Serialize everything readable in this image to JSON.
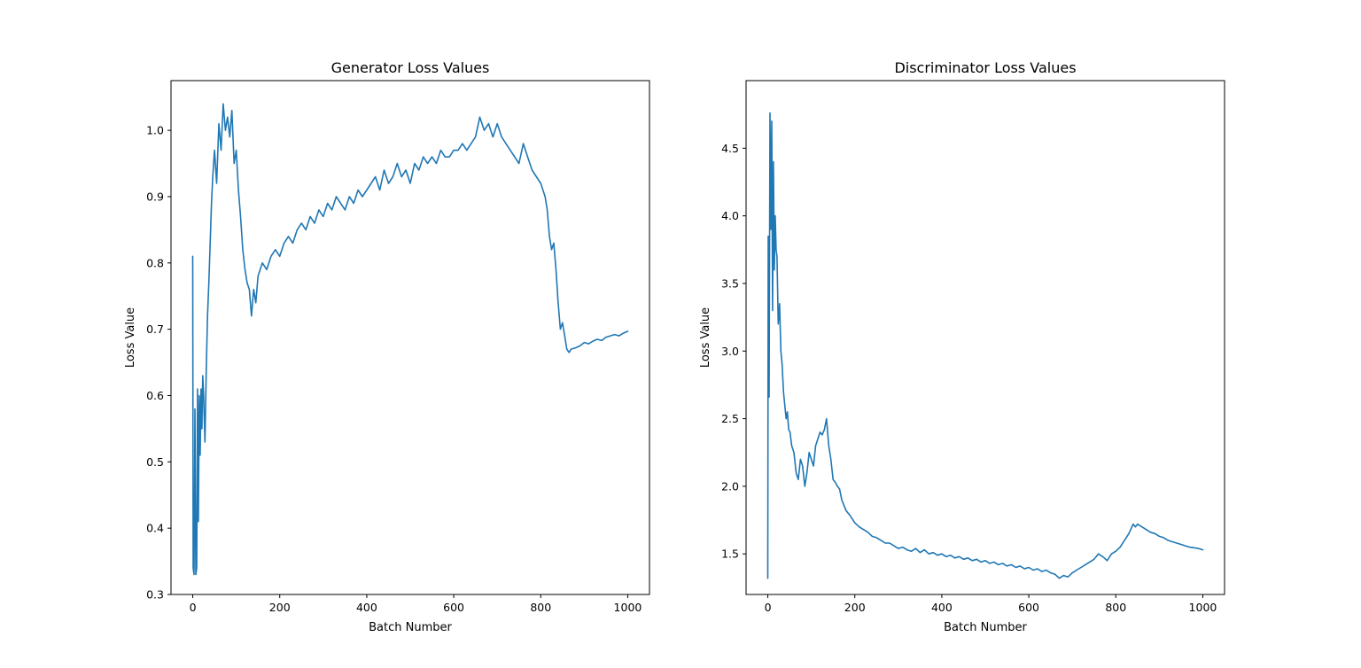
{
  "colors": {
    "series": "#1f77b4",
    "axes": "#000000",
    "background": "#ffffff"
  },
  "chart_data": [
    {
      "type": "line",
      "title": "Generator Loss Values",
      "xlabel": "Batch Number",
      "ylabel": "Loss Value",
      "xlim": [
        -50,
        1050
      ],
      "ylim": [
        0.3,
        1.075
      ],
      "xticks": [
        0,
        200,
        400,
        600,
        800,
        1000
      ],
      "yticks": [
        0.3,
        0.4,
        0.5,
        0.6,
        0.7,
        0.8,
        0.9,
        1.0
      ],
      "xtick_labels": [
        "0",
        "200",
        "400",
        "600",
        "800",
        "1000"
      ],
      "ytick_labels": [
        "0.3",
        "0.4",
        "0.5",
        "0.6",
        "0.7",
        "0.8",
        "0.9",
        "1.0"
      ],
      "grid": false,
      "series": [
        {
          "x": [
            0,
            1,
            3,
            5,
            7,
            9,
            11,
            13,
            15,
            17,
            19,
            21,
            23,
            25,
            28,
            31,
            34,
            37,
            40,
            43,
            46,
            50,
            55,
            60,
            65,
            70,
            75,
            80,
            85,
            90,
            95,
            100,
            105,
            110,
            115,
            120,
            125,
            130,
            135,
            140,
            145,
            150,
            160,
            170,
            180,
            190,
            200,
            210,
            220,
            230,
            240,
            250,
            260,
            270,
            280,
            290,
            300,
            310,
            320,
            330,
            340,
            350,
            360,
            370,
            380,
            390,
            400,
            410,
            420,
            430,
            440,
            450,
            460,
            470,
            480,
            490,
            500,
            510,
            520,
            530,
            540,
            550,
            560,
            570,
            580,
            590,
            600,
            610,
            620,
            630,
            640,
            650,
            660,
            670,
            680,
            690,
            700,
            710,
            720,
            730,
            740,
            750,
            760,
            770,
            780,
            790,
            800,
            810,
            815,
            820,
            825,
            830,
            835,
            840,
            845,
            850,
            855,
            860,
            865,
            870,
            880,
            890,
            900,
            910,
            920,
            930,
            940,
            950,
            960,
            970,
            980,
            990,
            1000
          ],
          "y": [
            0.81,
            0.34,
            0.33,
            0.58,
            0.33,
            0.34,
            0.61,
            0.41,
            0.6,
            0.51,
            0.61,
            0.55,
            0.63,
            0.6,
            0.53,
            0.64,
            0.72,
            0.77,
            0.83,
            0.89,
            0.93,
            0.97,
            0.92,
            1.01,
            0.97,
            1.04,
            1.0,
            1.02,
            0.99,
            1.03,
            0.95,
            0.97,
            0.91,
            0.87,
            0.82,
            0.79,
            0.77,
            0.76,
            0.72,
            0.76,
            0.74,
            0.78,
            0.8,
            0.79,
            0.81,
            0.82,
            0.81,
            0.83,
            0.84,
            0.83,
            0.85,
            0.86,
            0.85,
            0.87,
            0.86,
            0.88,
            0.87,
            0.89,
            0.88,
            0.9,
            0.89,
            0.88,
            0.9,
            0.89,
            0.91,
            0.9,
            0.91,
            0.92,
            0.93,
            0.91,
            0.94,
            0.92,
            0.93,
            0.95,
            0.93,
            0.94,
            0.92,
            0.95,
            0.94,
            0.96,
            0.95,
            0.96,
            0.95,
            0.97,
            0.96,
            0.96,
            0.97,
            0.97,
            0.98,
            0.97,
            0.98,
            0.99,
            1.02,
            1.0,
            1.01,
            0.99,
            1.01,
            0.99,
            0.98,
            0.97,
            0.96,
            0.95,
            0.98,
            0.96,
            0.94,
            0.93,
            0.92,
            0.9,
            0.88,
            0.84,
            0.82,
            0.83,
            0.79,
            0.74,
            0.7,
            0.71,
            0.69,
            0.67,
            0.665,
            0.67,
            0.672,
            0.675,
            0.68,
            0.678,
            0.682,
            0.685,
            0.683,
            0.688,
            0.69,
            0.692,
            0.69,
            0.694,
            0.697
          ]
        }
      ]
    },
    {
      "type": "line",
      "title": "Discriminator Loss Values",
      "xlabel": "Batch Number",
      "ylabel": "Loss Value",
      "xlim": [
        -50,
        1050
      ],
      "ylim": [
        1.2,
        5.0
      ],
      "xticks": [
        0,
        200,
        400,
        600,
        800,
        1000
      ],
      "yticks": [
        1.5,
        2.0,
        2.5,
        3.0,
        3.5,
        4.0,
        4.5
      ],
      "xtick_labels": [
        "0",
        "200",
        "400",
        "600",
        "800",
        "1000"
      ],
      "ytick_labels": [
        "1.5",
        "2.0",
        "2.5",
        "3.0",
        "3.5",
        "4.0",
        "4.5"
      ],
      "grid": false,
      "series": [
        {
          "x": [
            0,
            1,
            3,
            5,
            7,
            9,
            11,
            13,
            15,
            17,
            19,
            21,
            24,
            27,
            30,
            33,
            36,
            39,
            42,
            45,
            48,
            51,
            55,
            60,
            65,
            70,
            75,
            80,
            85,
            90,
            95,
            100,
            105,
            110,
            115,
            120,
            125,
            130,
            135,
            140,
            145,
            150,
            155,
            160,
            165,
            170,
            180,
            190,
            200,
            210,
            220,
            230,
            240,
            250,
            260,
            270,
            280,
            290,
            300,
            310,
            320,
            330,
            340,
            350,
            360,
            370,
            380,
            390,
            400,
            410,
            420,
            430,
            440,
            450,
            460,
            470,
            480,
            490,
            500,
            510,
            520,
            530,
            540,
            550,
            560,
            570,
            580,
            590,
            600,
            610,
            620,
            630,
            640,
            650,
            660,
            670,
            680,
            690,
            700,
            710,
            720,
            730,
            740,
            750,
            760,
            770,
            780,
            790,
            800,
            810,
            820,
            830,
            840,
            845,
            850,
            860,
            870,
            880,
            890,
            900,
            910,
            920,
            930,
            940,
            950,
            960,
            970,
            980,
            990,
            1000
          ],
          "y": [
            1.32,
            3.85,
            2.66,
            4.76,
            3.9,
            4.7,
            3.3,
            4.4,
            3.6,
            4.0,
            3.75,
            3.7,
            3.2,
            3.35,
            3.0,
            2.9,
            2.7,
            2.6,
            2.5,
            2.55,
            2.42,
            2.4,
            2.3,
            2.25,
            2.1,
            2.05,
            2.2,
            2.15,
            2.0,
            2.1,
            2.25,
            2.2,
            2.15,
            2.3,
            2.35,
            2.4,
            2.38,
            2.42,
            2.5,
            2.3,
            2.2,
            2.05,
            2.03,
            2.0,
            1.98,
            1.9,
            1.82,
            1.78,
            1.73,
            1.7,
            1.68,
            1.66,
            1.63,
            1.62,
            1.6,
            1.58,
            1.58,
            1.56,
            1.54,
            1.55,
            1.53,
            1.52,
            1.54,
            1.51,
            1.53,
            1.5,
            1.51,
            1.49,
            1.5,
            1.48,
            1.49,
            1.47,
            1.48,
            1.46,
            1.47,
            1.45,
            1.46,
            1.44,
            1.45,
            1.43,
            1.44,
            1.42,
            1.43,
            1.41,
            1.42,
            1.4,
            1.41,
            1.39,
            1.4,
            1.38,
            1.39,
            1.37,
            1.38,
            1.36,
            1.35,
            1.32,
            1.34,
            1.33,
            1.36,
            1.38,
            1.4,
            1.42,
            1.44,
            1.46,
            1.5,
            1.48,
            1.45,
            1.5,
            1.52,
            1.55,
            1.6,
            1.65,
            1.72,
            1.7,
            1.72,
            1.7,
            1.68,
            1.66,
            1.65,
            1.63,
            1.62,
            1.6,
            1.59,
            1.58,
            1.57,
            1.56,
            1.55,
            1.545,
            1.54,
            1.53
          ]
        }
      ]
    }
  ]
}
